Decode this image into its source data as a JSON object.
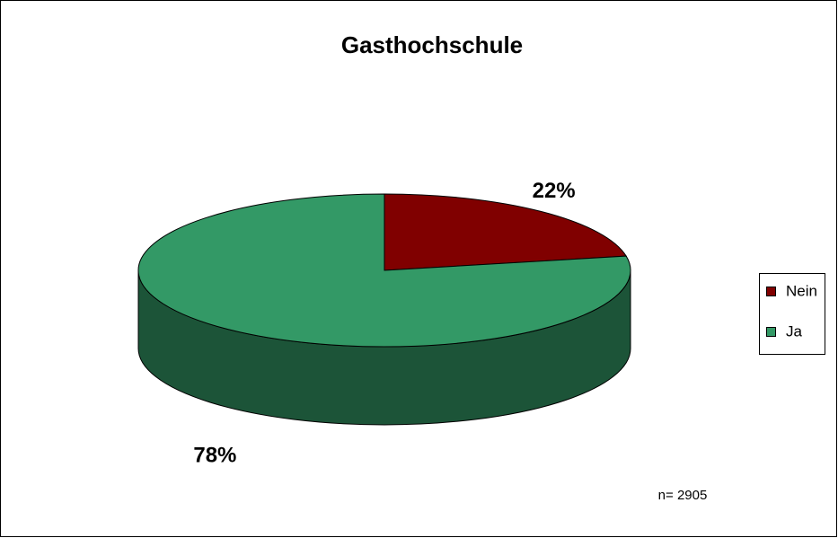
{
  "chart_data": {
    "type": "pie3d",
    "title": "Gasthochschule",
    "categories": [
      "Nein",
      "Ja"
    ],
    "values": [
      22,
      78
    ],
    "value_labels": [
      "22%",
      "78%"
    ],
    "colors": [
      "#800000",
      "#339966"
    ],
    "legend": "right",
    "annotation": "n= 2905"
  }
}
